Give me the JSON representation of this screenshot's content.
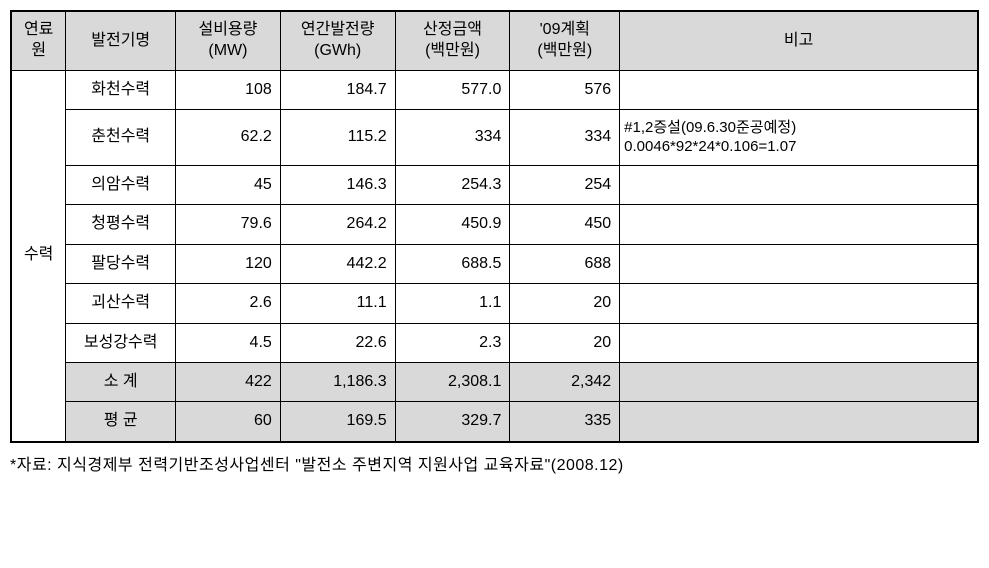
{
  "table": {
    "headers": {
      "fuel": "연료\n원",
      "name": "발전기명",
      "capacity": "설비용량\n(MW)",
      "generation": "연간발전량\n(GWh)",
      "amount": "산정금액\n(백만원)",
      "plan": "'09계획\n(백만원)",
      "note": "비고"
    },
    "fuel_label": "수력",
    "rows": [
      {
        "name": "화천수력",
        "capacity": "108",
        "generation": "184.7",
        "amount": "577.0",
        "plan": "576",
        "note": ""
      },
      {
        "name": "춘천수력",
        "capacity": "62.2",
        "generation": "115.2",
        "amount": "334",
        "plan": "334",
        "note": "#1,2증설(09.6.30준공예정)\n0.0046*92*24*0.106=1.07"
      },
      {
        "name": "의암수력",
        "capacity": "45",
        "generation": "146.3",
        "amount": "254.3",
        "plan": "254",
        "note": ""
      },
      {
        "name": "청평수력",
        "capacity": "79.6",
        "generation": "264.2",
        "amount": "450.9",
        "plan": "450",
        "note": ""
      },
      {
        "name": "팔당수력",
        "capacity": "120",
        "generation": "442.2",
        "amount": "688.5",
        "plan": "688",
        "note": ""
      },
      {
        "name": "괴산수력",
        "capacity": "2.6",
        "generation": "11.1",
        "amount": "1.1",
        "plan": "20",
        "note": ""
      },
      {
        "name": "보성강수력",
        "capacity": "4.5",
        "generation": "22.6",
        "amount": "2.3",
        "plan": "20",
        "note": ""
      }
    ],
    "subtotal": {
      "name": "소 계",
      "capacity": "422",
      "generation": "1,186.3",
      "amount": "2,308.1",
      "plan": "2,342",
      "note": ""
    },
    "average": {
      "name": "평 균",
      "capacity": "60",
      "generation": "169.5",
      "amount": "329.7",
      "plan": "335",
      "note": ""
    }
  },
  "citation": "*자료: 지식경제부 전력기반조성사업센터 \"발전소 주변지역 지원사업 교육자료\"(2008.12)",
  "colors": {
    "header_bg": "#d9d9d9",
    "border": "#000000",
    "background": "#ffffff"
  }
}
